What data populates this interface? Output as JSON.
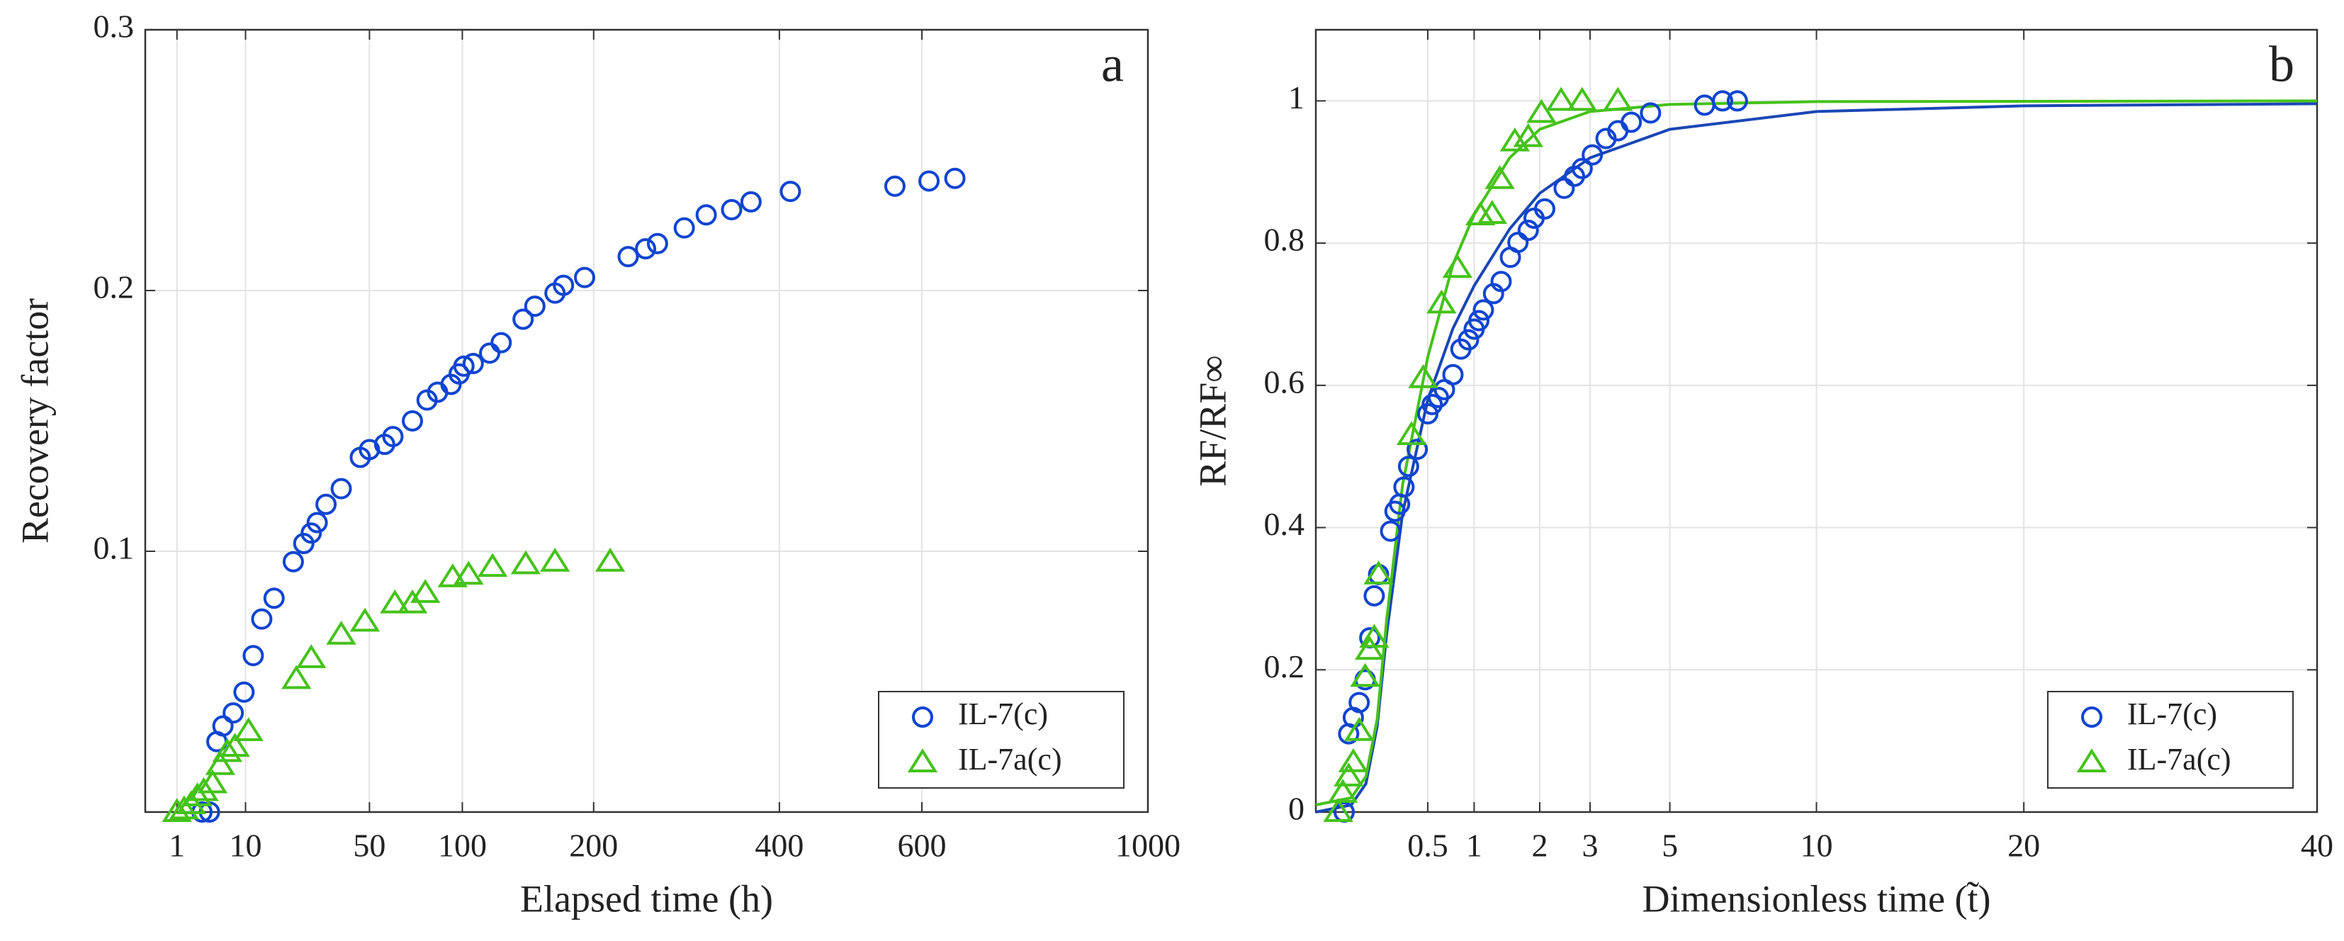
{
  "chart_data": [
    {
      "type": "scatter",
      "label": "a",
      "xlabel": "Elapsed time (h)",
      "ylabel": "Recovery factor",
      "xscale": "sqrt",
      "xlim": [
        0,
        1000
      ],
      "ylim": [
        0,
        0.3
      ],
      "xticks": [
        1,
        10,
        50,
        100,
        200,
        400,
        600,
        1000
      ],
      "yticks": [
        0.1,
        0.2,
        0.3
      ],
      "grid": true,
      "legend": "lower right",
      "series": [
        {
          "name": "IL-7(c)",
          "color": "#1045d0",
          "marker": "circle",
          "x": [
            3.2,
            4.1,
            5.1,
            6.0,
            7.7,
            9.7,
            11.6,
            13.5,
            16.5,
            21.8,
            25,
            27.4,
            29.4,
            32.5,
            38.2,
            46,
            50,
            57,
            61,
            71,
            79,
            85,
            93,
            98,
            101,
            107,
            118,
            126,
            142,
            151,
            167,
            174,
            192,
            232,
            249,
            261,
            289,
            313,
            342,
            365,
            414,
            559,
            611,
            652
          ],
          "values": [
            0,
            0,
            0.027,
            0.033,
            0.038,
            0.046,
            0.06,
            0.074,
            0.082,
            0.096,
            0.103,
            0.107,
            0.111,
            0.118,
            0.124,
            0.136,
            0.139,
            0.141,
            0.144,
            0.15,
            0.158,
            0.161,
            0.164,
            0.168,
            0.171,
            0.172,
            0.176,
            0.18,
            0.189,
            0.194,
            0.199,
            0.202,
            0.205,
            0.213,
            0.216,
            0.218,
            0.224,
            0.229,
            0.231,
            0.234,
            0.238,
            0.24,
            0.242,
            0.243
          ]
        },
        {
          "name": "IL-7a(c)",
          "color": "#45c21a",
          "marker": "triangle",
          "x": [
            1,
            1.5,
            2.1,
            2.7,
            3.4,
            4.5,
            5.6,
            6.7,
            8.0,
            10.6,
            22.7,
            27.4,
            38.2,
            48,
            62,
            71,
            78,
            94,
            104,
            120,
            144,
            167,
            215
          ],
          "values": [
            0,
            0.001,
            0.003,
            0.006,
            0.008,
            0.011,
            0.018,
            0.023,
            0.025,
            0.031,
            0.051,
            0.059,
            0.068,
            0.073,
            0.08,
            0.08,
            0.084,
            0.09,
            0.091,
            0.094,
            0.095,
            0.096,
            0.096
          ]
        }
      ]
    },
    {
      "type": "scatter",
      "label": "b",
      "xlabel": "Dimensionless time (t̃)",
      "ylabel": "RF/RF∞",
      "xscale": "sqrt",
      "xlim": [
        0,
        40
      ],
      "ylim": [
        0,
        1.1
      ],
      "xticks": [
        0.5,
        1,
        2,
        3,
        5,
        10,
        20,
        40
      ],
      "yticks": [
        0,
        0.2,
        0.4,
        0.6,
        0.8,
        1
      ],
      "grid": true,
      "legend": "lower right",
      "series": [
        {
          "name": "IL-7(c)",
          "color": "#1045d0",
          "marker": "circle",
          "x": [
            0.032,
            0.043,
            0.056,
            0.075,
            0.097,
            0.116,
            0.136,
            0.157,
            0.223,
            0.25,
            0.28,
            0.31,
            0.343,
            0.41,
            0.5,
            0.54,
            0.6,
            0.66,
            0.75,
            0.84,
            0.93,
            1.0,
            1.06,
            1.12,
            1.26,
            1.37,
            1.51,
            1.63,
            1.8,
            1.9,
            2.09,
            2.46,
            2.67,
            2.83,
            3.05,
            3.36,
            3.64,
            3.97,
            4.47,
            6.03,
            6.6,
            7.09
          ],
          "values": [
            0,
            0.11,
            0.133,
            0.154,
            0.186,
            0.245,
            0.304,
            0.334,
            0.395,
            0.423,
            0.433,
            0.457,
            0.486,
            0.51,
            0.56,
            0.573,
            0.583,
            0.594,
            0.615,
            0.651,
            0.664,
            0.679,
            0.691,
            0.706,
            0.729,
            0.746,
            0.78,
            0.801,
            0.818,
            0.835,
            0.848,
            0.877,
            0.894,
            0.905,
            0.924,
            0.947,
            0.958,
            0.97,
            0.983,
            0.994,
            1.0,
            1.0
          ]
        },
        {
          "name": "IL-7a(c)",
          "color": "#45c21a",
          "marker": "triangle",
          "x": [
            0.02,
            0.029,
            0.043,
            0.056,
            0.075,
            0.097,
            0.116,
            0.136,
            0.157,
            0.365,
            0.46,
            0.63,
            0.8,
            1.08,
            1.24,
            1.35,
            1.58,
            1.8,
            2.03,
            2.4,
            2.83,
            3.64
          ],
          "values": [
            0,
            0.027,
            0.05,
            0.07,
            0.114,
            0.19,
            0.228,
            0.245,
            0.334,
            0.53,
            0.61,
            0.715,
            0.765,
            0.839,
            0.841,
            0.89,
            0.943,
            0.949,
            0.983,
            1.0,
            1.0,
            1.0
          ]
        }
      ],
      "fit_lines": [
        {
          "color": "#1a47b5",
          "x": [
            0,
            0.05,
            0.1,
            0.15,
            0.2,
            0.3,
            0.5,
            0.75,
            1,
            1.5,
            2,
            3,
            5,
            10,
            20,
            40
          ],
          "values": [
            0,
            0.01,
            0.04,
            0.12,
            0.25,
            0.42,
            0.58,
            0.68,
            0.74,
            0.82,
            0.87,
            0.92,
            0.96,
            0.985,
            0.993,
            0.996
          ]
        },
        {
          "color": "#45c21a",
          "x": [
            0,
            0.05,
            0.1,
            0.15,
            0.2,
            0.3,
            0.5,
            0.75,
            1,
            1.5,
            2,
            3,
            5,
            10,
            40
          ],
          "values": [
            0.01,
            0.02,
            0.05,
            0.13,
            0.27,
            0.46,
            0.64,
            0.77,
            0.84,
            0.92,
            0.96,
            0.985,
            0.995,
            0.999,
            1.0
          ]
        }
      ]
    }
  ]
}
